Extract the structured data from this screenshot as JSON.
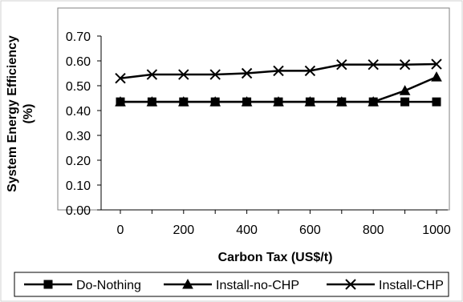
{
  "chart_data": {
    "type": "line",
    "title": "",
    "xlabel": "Carbon Tax (US$/t)",
    "ylabel": "System Energy Efficiency (%)",
    "ylabel_lines": [
      "System Energy Efficiency",
      "(%)"
    ],
    "x": [
      0,
      100,
      200,
      300,
      400,
      500,
      600,
      700,
      800,
      900,
      1000
    ],
    "x_ticks": [
      0,
      200,
      400,
      600,
      800,
      1000
    ],
    "y_ticks": [
      "0.00",
      "0.10",
      "0.20",
      "0.30",
      "0.40",
      "0.50",
      "0.60",
      "0.70"
    ],
    "xlim": [
      0,
      1000
    ],
    "ylim": [
      0,
      0.7
    ],
    "grid": false,
    "legend_position": "bottom",
    "series": [
      {
        "name": "Do-Nothing",
        "marker": "square",
        "color": "#000000",
        "values": [
          0.435,
          0.435,
          0.435,
          0.435,
          0.435,
          0.435,
          0.435,
          0.435,
          0.435,
          0.435,
          0.435
        ]
      },
      {
        "name": "Install-no-CHP",
        "marker": "triangle",
        "color": "#000000",
        "values": [
          0.435,
          0.435,
          0.435,
          0.435,
          0.435,
          0.435,
          0.435,
          0.435,
          0.435,
          0.48,
          0.535
        ]
      },
      {
        "name": "Install-CHP",
        "marker": "x",
        "color": "#000000",
        "values": [
          0.53,
          0.545,
          0.545,
          0.545,
          0.55,
          0.56,
          0.56,
          0.585,
          0.585,
          0.585,
          0.587
        ]
      }
    ]
  }
}
